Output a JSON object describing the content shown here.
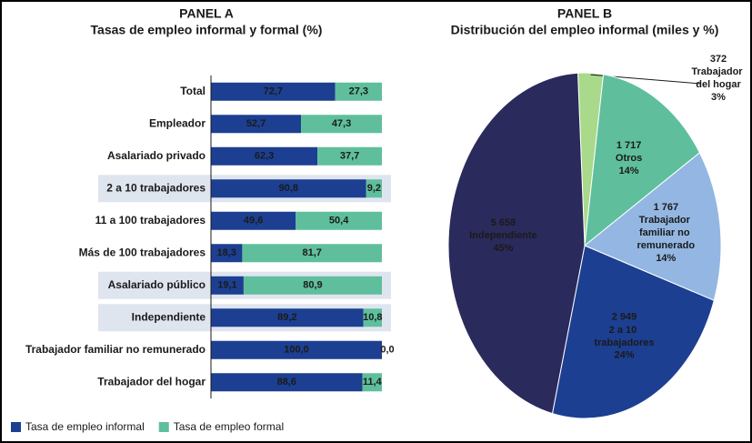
{
  "chart_data": [
    {
      "type": "stacked_bar_h",
      "title": "PANEL A",
      "subtitle": "Tasas de empleo informal y formal (%)",
      "categories": [
        "Total",
        "Empleador",
        "Asalariado privado",
        "2 a 10 trabajadores",
        "11 a 100 trabajadores",
        "Más de 100 trabajadores",
        "Asalariado público",
        "Independiente",
        "Trabajador familiar no remunerado",
        "Trabajador del hogar"
      ],
      "highlighted": [
        false,
        false,
        false,
        true,
        false,
        false,
        true,
        true,
        false,
        false
      ],
      "xlim": [
        0,
        100
      ],
      "series": [
        {
          "name": "Tasa de empleo informal",
          "color": "#1c3f91",
          "label_color": "#ffffff",
          "values": [
            72.7,
            52.7,
            62.3,
            90.8,
            49.6,
            18.3,
            19.1,
            89.2,
            100.0,
            88.6
          ],
          "value_labels": [
            "72,7",
            "52,7",
            "62,3",
            "90,8",
            "49,6",
            "18,3",
            "19,1",
            "89,2",
            "100,0",
            "88,6"
          ]
        },
        {
          "name": "Tasa de empleo formal",
          "color": "#5fbf9c",
          "label_color": "#1a1a1a",
          "values": [
            27.3,
            47.3,
            37.7,
            9.2,
            50.4,
            81.7,
            80.9,
            10.8,
            0.0,
            11.4
          ],
          "value_labels": [
            "27,3",
            "47,3",
            "37,7",
            "9,2",
            "50,4",
            "81,7",
            "80,9",
            "10,8",
            "0,0",
            "11,4"
          ]
        }
      ]
    },
    {
      "type": "pie",
      "title": "PANEL B",
      "subtitle": "Distribución del empleo informal (miles y %)",
      "categories": [
        "Trabajador del hogar",
        "Otros",
        "Trabajador familiar no remunerado",
        "2 a 10 trabajadores",
        "Independiente"
      ],
      "values": [
        372,
        1717,
        1767,
        2949,
        5658
      ],
      "value_labels": [
        "372",
        "1 717",
        "1 767",
        "2 949",
        "5 658"
      ],
      "percents": [
        3,
        14,
        14,
        24,
        45
      ],
      "percent_labels": [
        "3%",
        "14%",
        "14%",
        "24%",
        "45%"
      ],
      "colors": [
        "#a9d98b",
        "#5fbf9c",
        "#93b7e2",
        "#1c3f91",
        "#2b2a5c"
      ],
      "label_colors": [
        "#1a1a1a",
        "#ffffff",
        "#1a1a1a",
        "#ffffff",
        "#ffffff"
      ]
    }
  ]
}
